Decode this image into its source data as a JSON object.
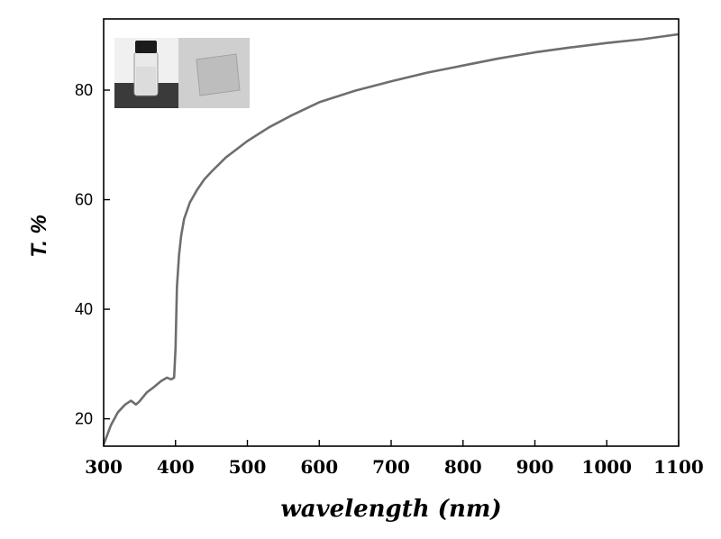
{
  "chart_data": {
    "type": "line",
    "title": "",
    "xlabel": "wavelength (nm)",
    "ylabel": "T. %",
    "xlim": [
      300,
      1100
    ],
    "ylim": [
      15,
      93
    ],
    "x_ticks": [
      300,
      400,
      500,
      600,
      700,
      800,
      900,
      1000,
      1100
    ],
    "y_ticks": [
      20,
      40,
      60,
      80
    ],
    "grid": false,
    "legend": "none",
    "inset": "photo of a sealed glass vial with clear liquid and a transparent film sample",
    "series": [
      {
        "color": "#6e6e6e",
        "x": [
          300,
          310,
          320,
          330,
          338,
          345,
          350,
          360,
          370,
          380,
          388,
          394,
          398,
          400,
          402,
          405,
          408,
          412,
          420,
          430,
          440,
          450,
          470,
          500,
          530,
          560,
          600,
          650,
          700,
          750,
          800,
          850,
          900,
          950,
          1000,
          1050,
          1100
        ],
        "y": [
          15.3,
          18.8,
          21.2,
          22.6,
          23.3,
          22.6,
          23.2,
          24.8,
          25.8,
          26.9,
          27.5,
          27.2,
          27.5,
          33.0,
          44.0,
          50.0,
          53.5,
          56.5,
          59.5,
          61.8,
          63.7,
          65.1,
          67.7,
          70.7,
          73.2,
          75.3,
          77.8,
          79.9,
          81.6,
          83.2,
          84.5,
          85.8,
          86.9,
          87.8,
          88.6,
          89.3,
          90.2
        ]
      }
    ]
  }
}
